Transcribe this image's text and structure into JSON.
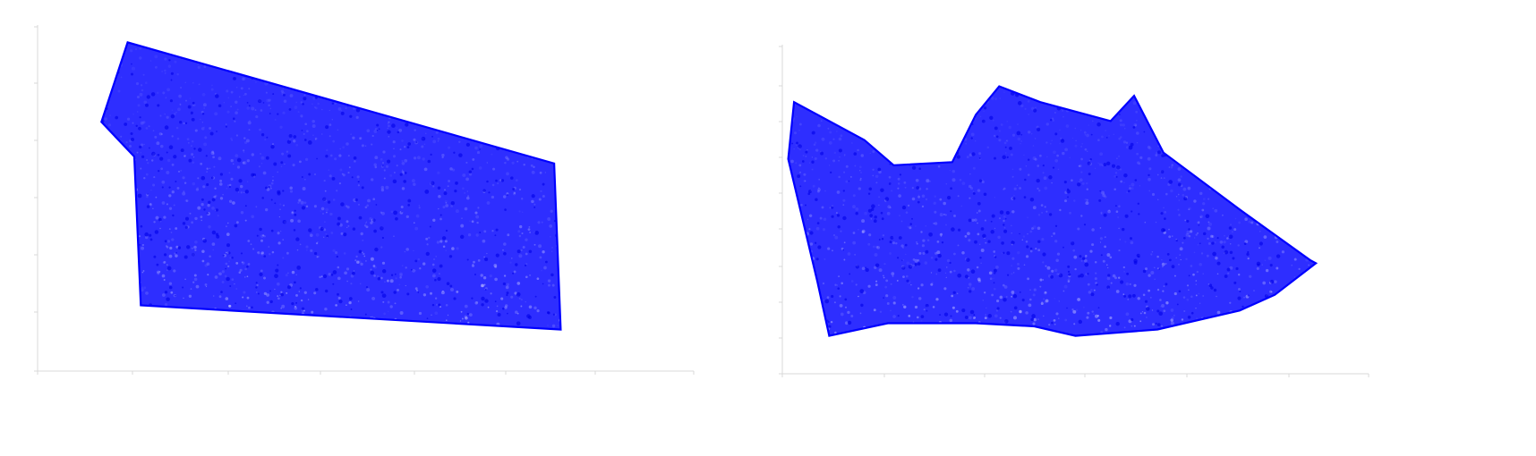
{
  "colors": {
    "points": "#0000ff",
    "points_dense": "#0000e8",
    "axis": "#d9d9d9",
    "background": "#ffffff"
  },
  "chart_data": [
    {
      "type": "scatter",
      "title": "",
      "xlabel": "",
      "ylabel": "",
      "grid": false,
      "legend": "none",
      "xlim": [
        0,
        1
      ],
      "ylim": [
        0,
        1
      ],
      "series": [
        {
          "shape": "sheet-point-cloud",
          "outline": [
            [
              0.07,
              0.72
            ],
            [
              0.11,
              0.95
            ],
            [
              0.76,
              0.6
            ],
            [
              0.77,
              0.12
            ],
            [
              0.13,
              0.19
            ],
            [
              0.12,
              0.62
            ]
          ],
          "density": "high"
        }
      ]
    },
    {
      "type": "scatter",
      "title": "",
      "xlabel": "",
      "ylabel": "",
      "grid": false,
      "legend": "none",
      "xlim": [
        0,
        1
      ],
      "ylim": [
        0,
        1
      ],
      "series": [
        {
          "shape": "terrain-point-cloud",
          "outline": [
            [
              0.02,
              0.86
            ],
            [
              0.14,
              0.74
            ],
            [
              0.19,
              0.66
            ],
            [
              0.29,
              0.67
            ],
            [
              0.33,
              0.82
            ],
            [
              0.37,
              0.91
            ],
            [
              0.44,
              0.86
            ],
            [
              0.5,
              0.83
            ],
            [
              0.56,
              0.8
            ],
            [
              0.6,
              0.88
            ],
            [
              0.65,
              0.7
            ],
            [
              0.78,
              0.52
            ],
            [
              0.9,
              0.36
            ],
            [
              0.91,
              0.35
            ],
            [
              0.84,
              0.25
            ],
            [
              0.78,
              0.2
            ],
            [
              0.64,
              0.14
            ],
            [
              0.5,
              0.12
            ],
            [
              0.43,
              0.15
            ],
            [
              0.33,
              0.16
            ],
            [
              0.18,
              0.16
            ],
            [
              0.08,
              0.12
            ],
            [
              0.06,
              0.29
            ],
            [
              0.01,
              0.68
            ]
          ],
          "density": "high"
        }
      ]
    }
  ]
}
